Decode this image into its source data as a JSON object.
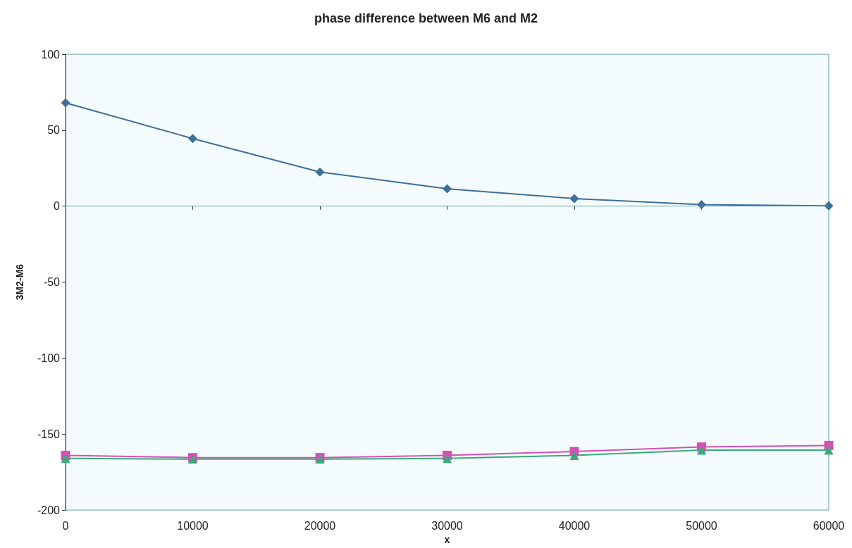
{
  "chart_data": {
    "type": "line",
    "title": "phase difference between M6 and M2",
    "xlabel": "x",
    "ylabel": "3M2-M6",
    "x": [
      0,
      10000,
      20000,
      30000,
      40000,
      50000,
      60000
    ],
    "series": [
      {
        "color": "#3e6f9a",
        "marker": "diamond",
        "values": [
          68,
          44.5,
          22.5,
          11.5,
          5,
          1,
          0.2
        ]
      },
      {
        "color": "#d64fb4",
        "marker": "square",
        "values": [
          -164,
          -165.5,
          -165.5,
          -164,
          -161.5,
          -158.5,
          -157.5
        ]
      },
      {
        "color": "#3aaa78",
        "marker": "triangle",
        "values": [
          -166,
          -166.5,
          -166.5,
          -166,
          -164,
          -160.5,
          -160.5
        ]
      }
    ],
    "xlim": [
      0,
      60000
    ],
    "xticks": [
      0,
      10000,
      20000,
      30000,
      40000,
      50000,
      60000
    ],
    "ylim": [
      -200,
      100
    ],
    "yticks": [
      -200,
      -150,
      -100,
      -50,
      0,
      50,
      100
    ],
    "ref_lines": [
      {
        "axis": "y",
        "value": 0,
        "color": "#5f9fa8"
      }
    ],
    "grid": false,
    "line_style": "solid"
  }
}
